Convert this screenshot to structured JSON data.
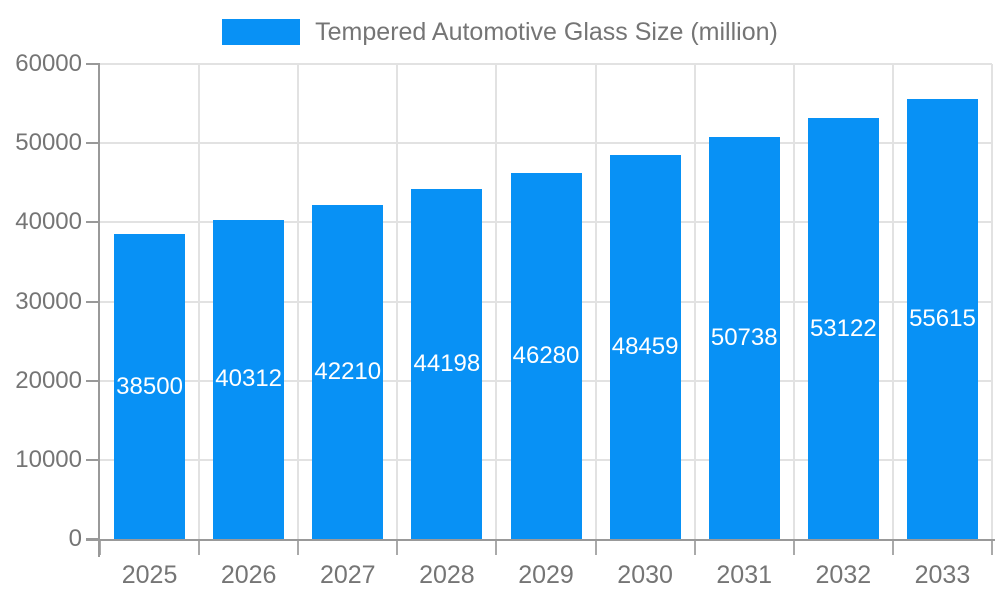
{
  "chart_data": {
    "type": "bar",
    "title": "Tempered Automotive Glass Size (million)",
    "legend_position": "top",
    "categories": [
      "2025",
      "2026",
      "2027",
      "2028",
      "2029",
      "2030",
      "2031",
      "2032",
      "2033"
    ],
    "series": [
      {
        "name": "Tempered Automotive Glass Size (million)",
        "values": [
          38500,
          40312,
          42210,
          44198,
          46280,
          48459,
          50738,
          53122,
          55615
        ]
      }
    ],
    "bar_value_labels": [
      "38500",
      "40312",
      "42210",
      "44198",
      "46280",
      "48459",
      "50738",
      "53122",
      "55615"
    ],
    "xlabel": "",
    "ylabel": "",
    "ylim": [
      0,
      60000
    ],
    "y_ticks": [
      0,
      10000,
      20000,
      30000,
      40000,
      50000,
      60000
    ],
    "y_tick_labels": [
      "0",
      "10000",
      "20000",
      "30000",
      "40000",
      "50000",
      "60000"
    ],
    "grid": "both",
    "bar_labels_inside": true,
    "colors": {
      "bar": "#0891f5",
      "bar_label": "#ffffff",
      "axis": "#999999",
      "tick": "#aaaaaa",
      "grid": "#e2e2e2",
      "text": "#757575",
      "background": "#ffffff"
    }
  }
}
